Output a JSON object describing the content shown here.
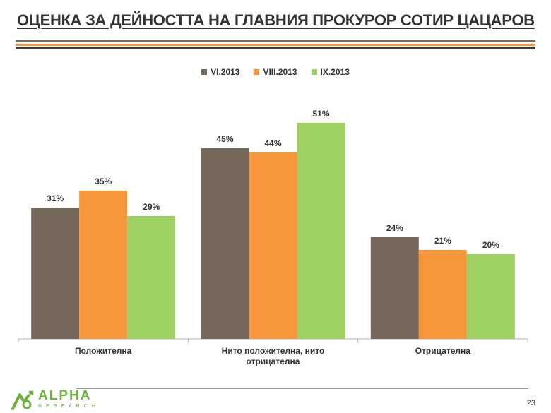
{
  "slide": {
    "title": "ОЦЕНКА ЗА ДЕЙНОСТТА НА ГЛАВНИЯ ПРОКУРОР СОТИР ЦАЦАРОВ",
    "page_number": "23",
    "logo_name": "ALPHA",
    "logo_sub": "RESEARCH"
  },
  "colors": {
    "title": "#333333",
    "rule_top": "#7a6a58",
    "rule_mid": "#f7963a",
    "rule_bottom": "#3a3a3a",
    "logo": "#6bb33a"
  },
  "chart_data": {
    "type": "bar",
    "title": "",
    "xlabel": "",
    "ylabel": "",
    "ylim": [
      0,
      60
    ],
    "grid": false,
    "legend_position": "top-center",
    "categories": [
      [
        "Положителна"
      ],
      [
        "Нито положителна, нито",
        "отрицателна"
      ],
      [
        "Отрицателна"
      ]
    ],
    "series": [
      {
        "name": "VI.2013",
        "color": "#76685a",
        "values": [
          31,
          45,
          24
        ],
        "labels": [
          "31%",
          "45%",
          "24%"
        ]
      },
      {
        "name": "VIII.2013",
        "color": "#f7963a",
        "values": [
          35,
          44,
          21
        ],
        "labels": [
          "35%",
          "44%",
          "21%"
        ]
      },
      {
        "name": "IX.2013",
        "color": "#9fd064",
        "values": [
          29,
          51,
          20
        ],
        "labels": [
          "29%",
          "51%",
          "20%"
        ]
      }
    ]
  }
}
